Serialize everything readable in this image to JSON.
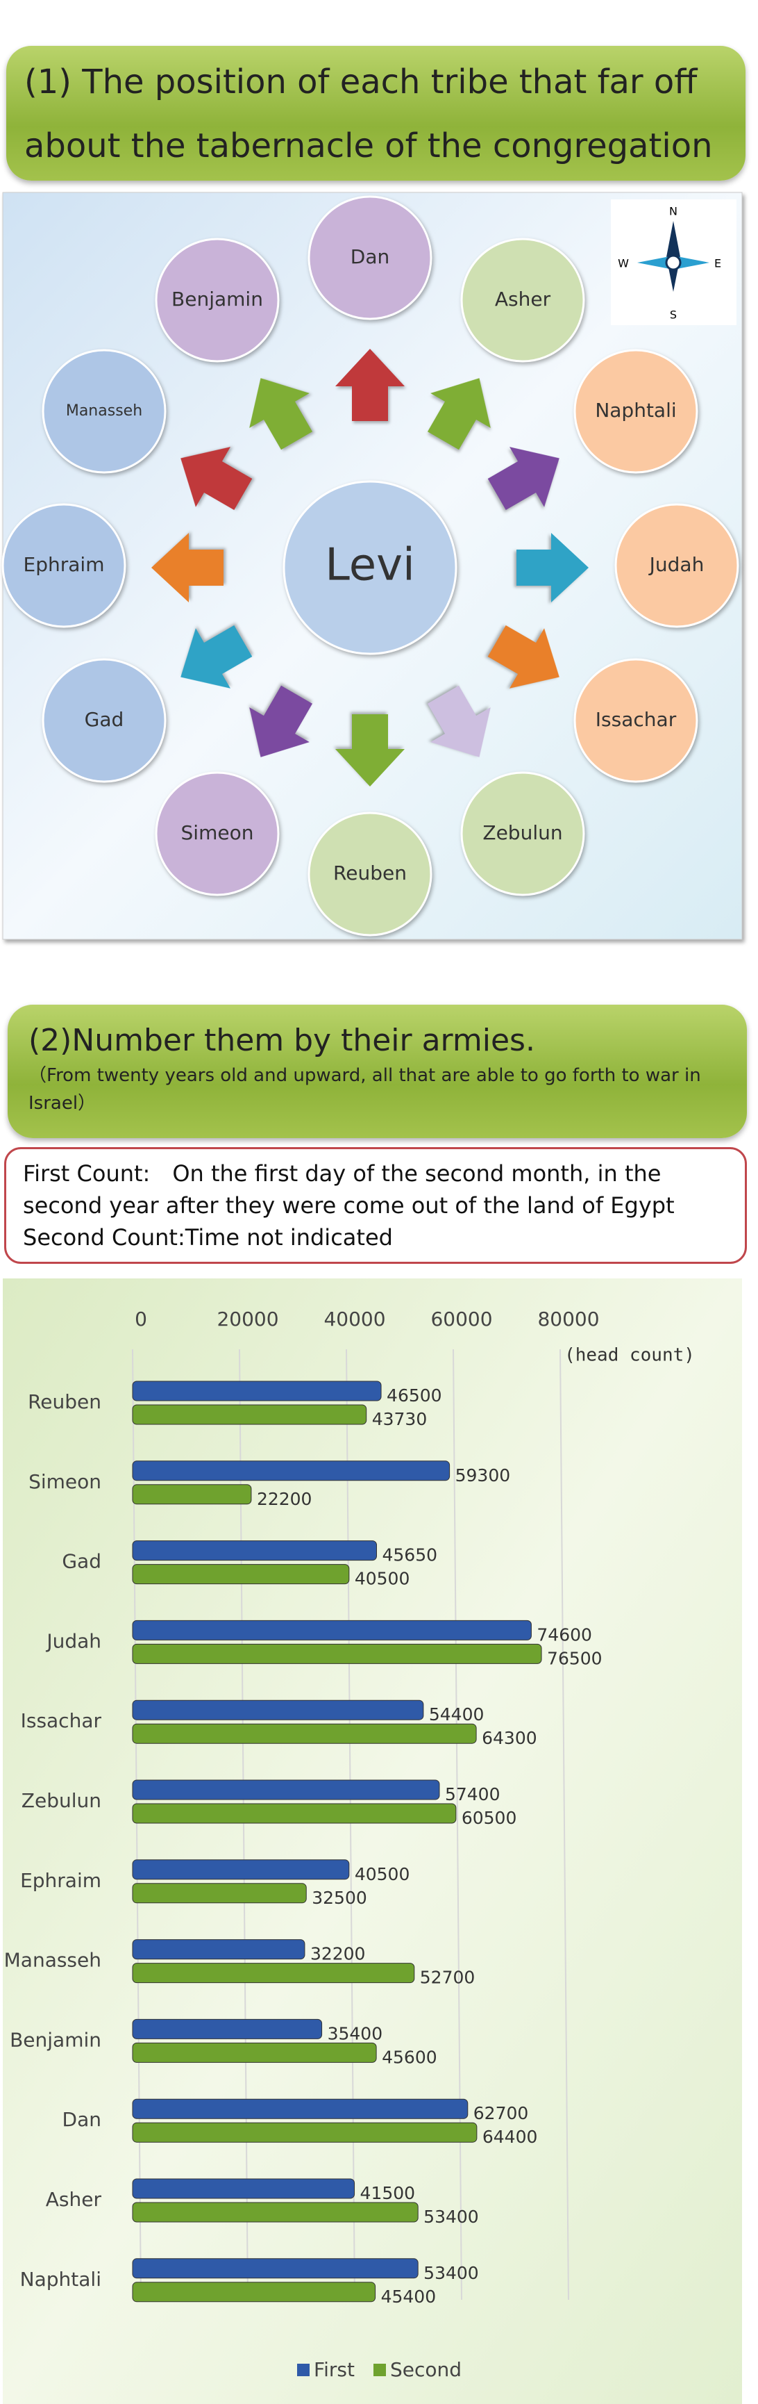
{
  "header1": {
    "lines": [
      "(1) The position of each tribe that far off",
      "about the tabernacle  of the congregation"
    ]
  },
  "diagram": {
    "center": "Levi",
    "nodes": [
      {
        "label": "Dan"
      },
      {
        "label": "Asher"
      },
      {
        "label": "Naphtali"
      },
      {
        "label": "Judah"
      },
      {
        "label": "Issachar"
      },
      {
        "label": "Zebulun"
      },
      {
        "label": "Reuben"
      },
      {
        "label": "Simeon"
      },
      {
        "label": "Gad"
      },
      {
        "label": "Ephraim"
      },
      {
        "label": "Manasseh"
      },
      {
        "label": "Benjamin"
      }
    ],
    "compass": {
      "n": "N",
      "e": "E",
      "s": "S",
      "w": "W"
    }
  },
  "header2": {
    "title": "(2)Number them by their armies.",
    "subtitle": "（From twenty years old and upward, all that are able to go forth to war in Israel）"
  },
  "note": {
    "lines": [
      "First Count:　On the first day of the second month, in the second year after they were come out of the land of Egypt",
      "Second Count:Time not indicated"
    ]
  },
  "chart_data": {
    "type": "bar",
    "orientation": "horizontal",
    "categories": [
      "Reuben",
      "Simeon",
      "Gad",
      "Judah",
      "Issachar",
      "Zebulun",
      "Ephraim",
      "Manasseh",
      "Benjamin",
      "Dan",
      "Asher",
      "Naphtali"
    ],
    "series": [
      {
        "name": "First",
        "color": "#2f5aa8",
        "values": [
          46500,
          59300,
          45650,
          74600,
          54400,
          57400,
          40500,
          32200,
          35400,
          62700,
          41500,
          53400
        ]
      },
      {
        "name": "Second",
        "color": "#6fa22e",
        "values": [
          43730,
          22200,
          40500,
          76500,
          64300,
          60500,
          32500,
          52700,
          45600,
          64400,
          53400,
          45400
        ]
      }
    ],
    "xlim": [
      0,
      80000
    ],
    "xticks": [
      0,
      20000,
      40000,
      60000,
      80000
    ],
    "grid": true,
    "unit_label": "(head count)",
    "legend": "bottom"
  }
}
